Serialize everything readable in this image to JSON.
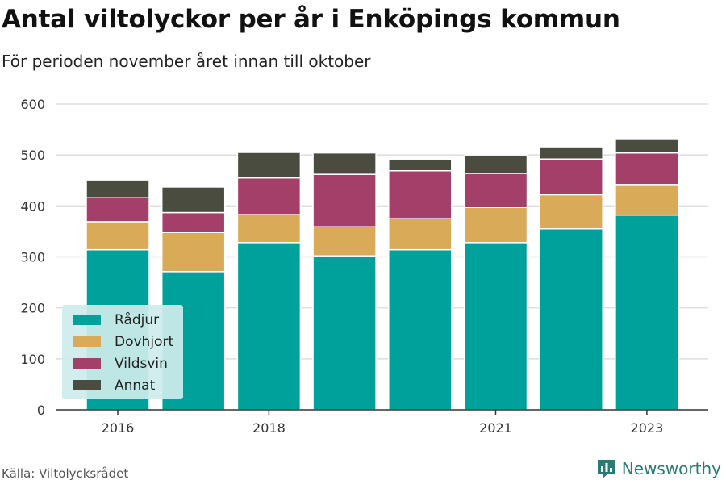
{
  "title": "Antal viltolyckor per år i Enköpings kommun",
  "subtitle": "För perioden november året innan till oktober",
  "source": "Källa: Viltolycksrådet",
  "brand": "Newsworthy",
  "colors": {
    "radjur": "#00a19a",
    "dovhjort": "#d9ab59",
    "vildsvin": "#a33f68",
    "annat": "#4a4c3f",
    "grid": "#dddddd",
    "axis": "#333333",
    "legend_bg": "#cdeceb",
    "brand": "#2b7a73"
  },
  "chart_data": {
    "type": "bar",
    "stacked": true,
    "categories": [
      "2016",
      "2017",
      "2018",
      "2019",
      "2020",
      "2021",
      "2022",
      "2023"
    ],
    "x_tick_labels": [
      "2016",
      "",
      "2018",
      "",
      "",
      "2021",
      "",
      "2023"
    ],
    "series": [
      {
        "name": "Rådjur",
        "color_key": "radjur",
        "values": [
          314,
          271,
          328,
          302,
          314,
          328,
          355,
          382
        ]
      },
      {
        "name": "Dovhjort",
        "color_key": "dovhjort",
        "values": [
          55,
          77,
          55,
          57,
          61,
          69,
          67,
          60
        ]
      },
      {
        "name": "Vildsvin",
        "color_key": "vildsvin",
        "values": [
          47,
          39,
          72,
          103,
          94,
          67,
          70,
          62
        ]
      },
      {
        "name": "Annat",
        "color_key": "annat",
        "values": [
          35,
          50,
          50,
          42,
          23,
          36,
          24,
          28
        ]
      }
    ],
    "ylim": [
      0,
      600
    ],
    "yticks": [
      0,
      100,
      200,
      300,
      400,
      500,
      600
    ],
    "xlabel": "",
    "ylabel": "",
    "grid": true,
    "legend": {
      "position": "bottom-left",
      "items": [
        "Rådjur",
        "Dovhjort",
        "Vildsvin",
        "Annat"
      ]
    }
  }
}
